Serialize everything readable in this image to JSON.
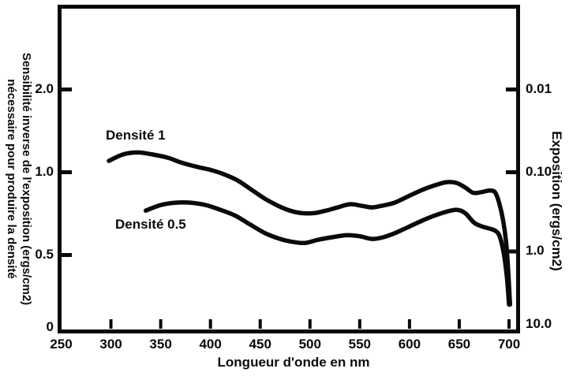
{
  "chart_data": {
    "type": "line",
    "title": "",
    "xlabel": "Longueur d'onde en nm",
    "ylabel_left_line1": "Sensibilité inverse de l'exposition (ergs/cm2)",
    "ylabel_left_line2": "nécessaire pour produire la densité",
    "ylabel_right": "Exposition (ergs/cm2)",
    "xlim": [
      250,
      700
    ],
    "x_ticks": [
      250,
      300,
      350,
      400,
      450,
      500,
      550,
      600,
      650,
      700
    ],
    "y_axis_left": {
      "scale": "log",
      "tick_labels": [
        "2.0",
        "1.0",
        "0.5",
        "0"
      ],
      "tick_values": [
        2.0,
        1.0,
        0.5,
        0
      ]
    },
    "y_axis_right": {
      "scale": "log",
      "tick_labels": [
        "0.01",
        "0.10",
        "1.0",
        "10.0"
      ],
      "tick_values": [
        0.01,
        0.1,
        1.0,
        10.0
      ]
    },
    "grid": false,
    "legend": "inline curve labels",
    "colors": {
      "curve": "#0a0a0a",
      "background": "#ffffff"
    },
    "series": [
      {
        "name": "Densité 1",
        "points": [
          [
            298,
            1.1
          ],
          [
            312,
            1.16
          ],
          [
            327,
            1.18
          ],
          [
            342,
            1.16
          ],
          [
            357,
            1.13
          ],
          [
            372,
            1.08
          ],
          [
            387,
            1.045
          ],
          [
            400,
            1.02
          ],
          [
            413,
            0.985
          ],
          [
            427,
            0.935
          ],
          [
            441,
            0.865
          ],
          [
            455,
            0.8
          ],
          [
            468,
            0.755
          ],
          [
            480,
            0.725
          ],
          [
            492,
            0.71
          ],
          [
            504,
            0.71
          ],
          [
            516,
            0.725
          ],
          [
            528,
            0.745
          ],
          [
            540,
            0.765
          ],
          [
            552,
            0.755
          ],
          [
            562,
            0.745
          ],
          [
            572,
            0.755
          ],
          [
            585,
            0.775
          ],
          [
            598,
            0.815
          ],
          [
            612,
            0.86
          ],
          [
            625,
            0.895
          ],
          [
            637,
            0.92
          ],
          [
            647,
            0.915
          ],
          [
            656,
            0.88
          ],
          [
            664,
            0.842
          ],
          [
            672,
            0.846
          ],
          [
            680,
            0.858
          ],
          [
            686,
            0.845
          ],
          [
            690,
            0.775
          ],
          [
            694,
            0.67
          ],
          [
            697,
            0.56
          ],
          [
            699,
            0.45
          ],
          [
            701,
            0.33
          ]
        ]
      },
      {
        "name": "Densité 0.5",
        "points": [
          [
            335,
            0.725
          ],
          [
            350,
            0.76
          ],
          [
            365,
            0.775
          ],
          [
            380,
            0.775
          ],
          [
            395,
            0.76
          ],
          [
            410,
            0.73
          ],
          [
            425,
            0.695
          ],
          [
            440,
            0.645
          ],
          [
            455,
            0.6
          ],
          [
            470,
            0.572
          ],
          [
            483,
            0.558
          ],
          [
            495,
            0.553
          ],
          [
            508,
            0.568
          ],
          [
            522,
            0.58
          ],
          [
            537,
            0.59
          ],
          [
            550,
            0.585
          ],
          [
            562,
            0.572
          ],
          [
            572,
            0.578
          ],
          [
            585,
            0.6
          ],
          [
            598,
            0.63
          ],
          [
            612,
            0.665
          ],
          [
            625,
            0.695
          ],
          [
            638,
            0.72
          ],
          [
            648,
            0.73
          ],
          [
            656,
            0.71
          ],
          [
            665,
            0.655
          ],
          [
            673,
            0.635
          ],
          [
            681,
            0.623
          ],
          [
            687,
            0.61
          ],
          [
            691,
            0.58
          ],
          [
            695,
            0.5
          ],
          [
            698,
            0.41
          ],
          [
            700,
            0.33
          ]
        ]
      }
    ]
  }
}
